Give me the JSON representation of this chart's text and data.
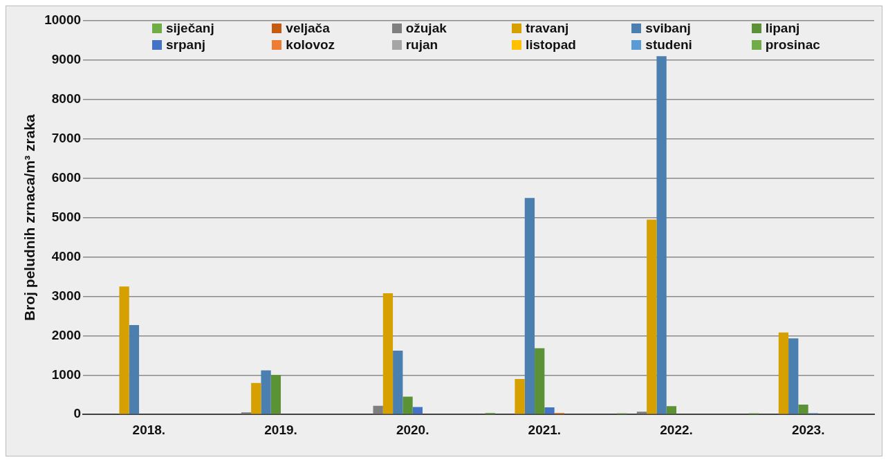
{
  "chart_data": {
    "type": "bar",
    "ylabel": "Broj peludnih zrnaca/m³ zraka",
    "categories": [
      "2018.",
      "2019.",
      "2020.",
      "2021.",
      "2022.",
      "2023."
    ],
    "series": [
      {
        "name": "siječanj",
        "color": "#70ad47",
        "values": [
          0,
          0,
          0,
          40,
          30,
          30
        ]
      },
      {
        "name": "veljača",
        "color": "#c55a11",
        "values": [
          0,
          0,
          0,
          0,
          0,
          0
        ]
      },
      {
        "name": "ožujak",
        "color": "#7f7f7f",
        "values": [
          0,
          50,
          220,
          0,
          70,
          0
        ]
      },
      {
        "name": "travanj",
        "color": "#d6a000",
        "values": [
          3250,
          800,
          3080,
          900,
          4950,
          2080
        ]
      },
      {
        "name": "svibanj",
        "color": "#4a7fb0",
        "values": [
          2270,
          1120,
          1620,
          5500,
          9100,
          1930
        ]
      },
      {
        "name": "lipanj",
        "color": "#5a9235",
        "values": [
          0,
          1000,
          450,
          1680,
          210,
          250
        ]
      },
      {
        "name": "srpanj",
        "color": "#4472c4",
        "values": [
          0,
          0,
          190,
          180,
          0,
          30
        ]
      },
      {
        "name": "kolovoz",
        "color": "#ed7d31",
        "values": [
          0,
          0,
          0,
          40,
          0,
          0
        ]
      },
      {
        "name": "rujan",
        "color": "#a5a5a5",
        "values": [
          0,
          0,
          0,
          0,
          0,
          0
        ]
      },
      {
        "name": "listopad",
        "color": "#ffc000",
        "values": [
          0,
          0,
          0,
          0,
          0,
          0
        ]
      },
      {
        "name": "studeni",
        "color": "#5b9bd5",
        "values": [
          0,
          0,
          0,
          0,
          0,
          0
        ]
      },
      {
        "name": "prosinac",
        "color": "#70ad47",
        "values": [
          0,
          0,
          0,
          0,
          0,
          0
        ]
      }
    ],
    "ylim": [
      0,
      10000
    ],
    "yticks": [
      0,
      1000,
      2000,
      3000,
      4000,
      5000,
      6000,
      7000,
      8000,
      9000,
      10000
    ],
    "grid": "y",
    "legend": "top"
  }
}
